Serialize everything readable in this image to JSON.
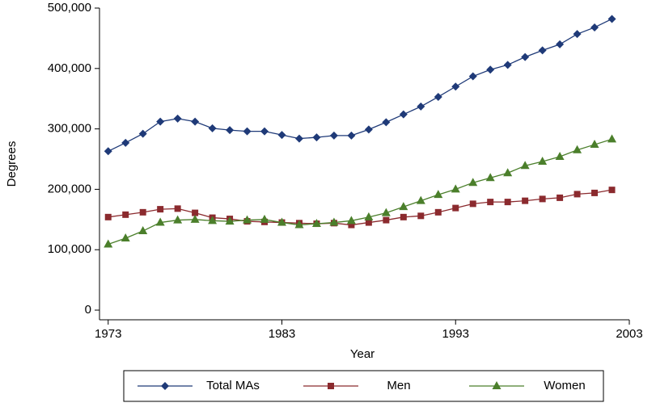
{
  "chart_data": {
    "type": "line",
    "x_label": "Year",
    "y_label": "Degrees",
    "x": [
      1973,
      1974,
      1975,
      1976,
      1977,
      1978,
      1979,
      1980,
      1981,
      1982,
      1983,
      1984,
      1985,
      1986,
      1987,
      1988,
      1989,
      1990,
      1991,
      1992,
      1993,
      1994,
      1995,
      1996,
      1997,
      1998,
      1999,
      2000,
      2001,
      2002
    ],
    "series": [
      {
        "name": "Total MAs",
        "color": "#1f3a78",
        "marker": "diamond",
        "values": [
          263000,
          277000,
          292000,
          312000,
          317000,
          312000,
          301000,
          298000,
          296000,
          296000,
          290000,
          284000,
          286000,
          289000,
          289000,
          299000,
          311000,
          324000,
          337000,
          353000,
          370000,
          387000,
          398000,
          406000,
          419000,
          430000,
          440000,
          457000,
          468000,
          482000
        ]
      },
      {
        "name": "Men",
        "color": "#8b2a2e",
        "marker": "square",
        "values": [
          154000,
          158000,
          162000,
          167000,
          168000,
          161000,
          153000,
          151000,
          147000,
          146000,
          145000,
          144000,
          143000,
          144000,
          141000,
          145000,
          149000,
          154000,
          156000,
          162000,
          169000,
          176000,
          179000,
          179000,
          181000,
          184000,
          186000,
          192000,
          194000,
          199000
        ]
      },
      {
        "name": "Women",
        "color": "#4b7f2b",
        "marker": "triangle",
        "values": [
          109000,
          119000,
          131000,
          145000,
          149000,
          150000,
          148000,
          147000,
          149000,
          150000,
          145000,
          141000,
          143000,
          145000,
          148000,
          154000,
          161000,
          171000,
          181000,
          191000,
          200000,
          211000,
          219000,
          227000,
          239000,
          246000,
          254000,
          265000,
          274000,
          283000
        ]
      }
    ],
    "xlim": [
      1972.5,
      2003
    ],
    "xticks": [
      1973,
      1983,
      1993,
      2003
    ],
    "ylim": [
      -16000,
      500000
    ],
    "yticks": [
      0,
      {
        "value": 100000,
        "label": "100,000"
      },
      {
        "value": 200000,
        "label": "200,000"
      },
      {
        "value": 300000,
        "label": "300,000"
      },
      {
        "value": 400000,
        "label": "400,000"
      },
      {
        "value": 500000,
        "label": "500,000"
      }
    ],
    "legend": "bottom"
  }
}
